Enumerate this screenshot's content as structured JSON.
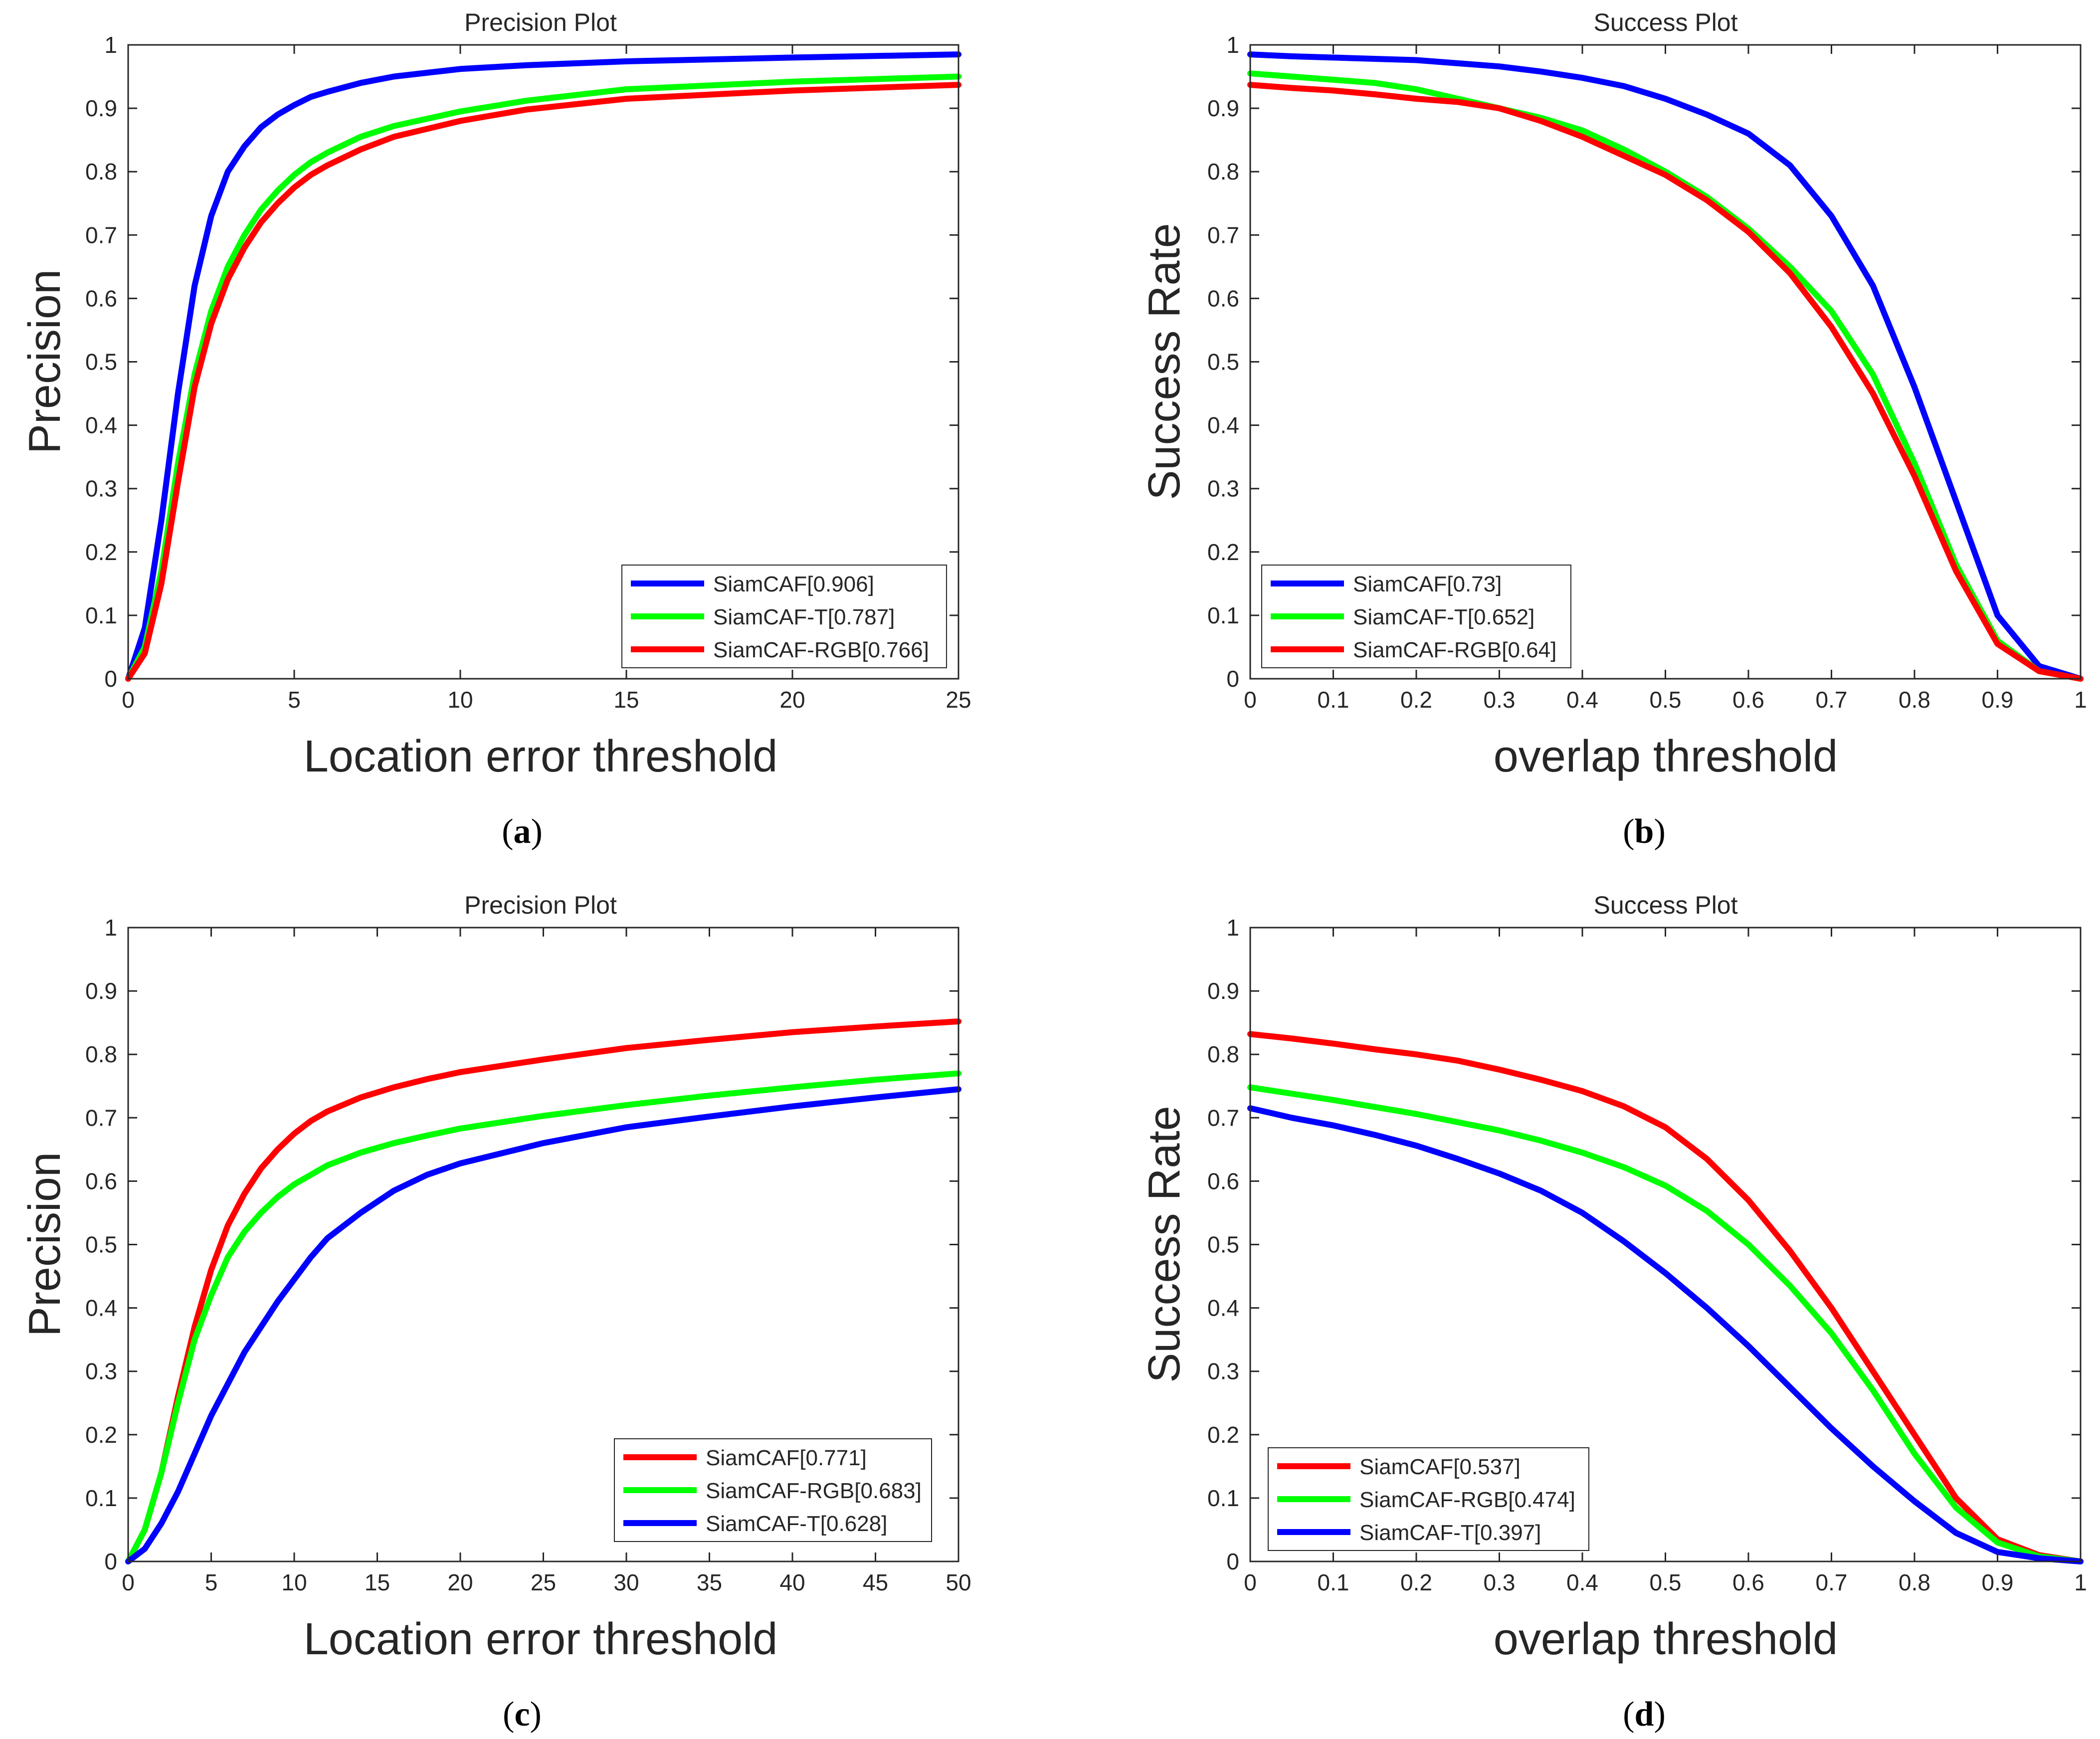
{
  "chart_data": [
    {
      "type": "line",
      "title": "Precision Plot",
      "xlabel": "Location error threshold",
      "ylabel": "Precision",
      "caption_label": "a",
      "xlim": [
        0,
        25
      ],
      "ylim": [
        0,
        1
      ],
      "xticks": [
        "0",
        "5",
        "10",
        "15",
        "20",
        "25"
      ],
      "yticks": [
        "0",
        "0.1",
        "0.2",
        "0.3",
        "0.4",
        "0.5",
        "0.6",
        "0.7",
        "0.8",
        "0.9",
        "1"
      ],
      "legend_position": "bottom-right",
      "series": [
        {
          "name": "SiamCAF[0.906]",
          "color": "#0000ff",
          "x": [
            0,
            0.5,
            1,
            1.5,
            2,
            2.5,
            3,
            3.5,
            4,
            4.5,
            5,
            5.5,
            6,
            7,
            8,
            10,
            12,
            15,
            20,
            25
          ],
          "y": [
            0,
            0.08,
            0.25,
            0.45,
            0.62,
            0.73,
            0.8,
            0.84,
            0.87,
            0.89,
            0.905,
            0.918,
            0.926,
            0.94,
            0.95,
            0.962,
            0.968,
            0.974,
            0.98,
            0.985
          ]
        },
        {
          "name": "SiamCAF-T[0.787]",
          "color": "#00ff00",
          "x": [
            0,
            0.5,
            1,
            1.5,
            2,
            2.5,
            3,
            3.5,
            4,
            4.5,
            5,
            5.5,
            6,
            7,
            8,
            10,
            12,
            15,
            20,
            25
          ],
          "y": [
            0,
            0.05,
            0.17,
            0.34,
            0.48,
            0.58,
            0.65,
            0.7,
            0.74,
            0.77,
            0.795,
            0.815,
            0.83,
            0.855,
            0.872,
            0.895,
            0.912,
            0.93,
            0.942,
            0.95
          ]
        },
        {
          "name": "SiamCAF-RGB[0.766]",
          "color": "#ff0000",
          "x": [
            0,
            0.5,
            1,
            1.5,
            2,
            2.5,
            3,
            3.5,
            4,
            4.5,
            5,
            5.5,
            6,
            7,
            8,
            10,
            12,
            15,
            20,
            25
          ],
          "y": [
            0,
            0.04,
            0.15,
            0.31,
            0.46,
            0.56,
            0.63,
            0.68,
            0.72,
            0.75,
            0.775,
            0.795,
            0.81,
            0.835,
            0.855,
            0.88,
            0.898,
            0.915,
            0.928,
            0.937
          ]
        }
      ]
    },
    {
      "type": "line",
      "title": "Success Plot",
      "xlabel": "overlap threshold",
      "ylabel": "Success Rate",
      "caption_label": "b",
      "xlim": [
        0,
        1
      ],
      "ylim": [
        0,
        1
      ],
      "xticks": [
        "0",
        "0.1",
        "0.2",
        "0.3",
        "0.4",
        "0.5",
        "0.6",
        "0.7",
        "0.8",
        "0.9",
        "1"
      ],
      "yticks": [
        "0",
        "0.1",
        "0.2",
        "0.3",
        "0.4",
        "0.5",
        "0.6",
        "0.7",
        "0.8",
        "0.9",
        "1"
      ],
      "legend_position": "bottom-left",
      "series": [
        {
          "name": "SiamCAF[0.73]",
          "color": "#0000ff",
          "x": [
            0,
            0.05,
            0.1,
            0.15,
            0.2,
            0.25,
            0.3,
            0.35,
            0.4,
            0.45,
            0.5,
            0.55,
            0.6,
            0.65,
            0.7,
            0.75,
            0.8,
            0.85,
            0.9,
            0.95,
            1
          ],
          "y": [
            0.985,
            0.982,
            0.98,
            0.978,
            0.976,
            0.971,
            0.966,
            0.958,
            0.948,
            0.935,
            0.915,
            0.89,
            0.86,
            0.81,
            0.73,
            0.62,
            0.46,
            0.28,
            0.1,
            0.02,
            0
          ]
        },
        {
          "name": "SiamCAF-T[0.652]",
          "color": "#00ff00",
          "x": [
            0,
            0.05,
            0.1,
            0.15,
            0.2,
            0.25,
            0.3,
            0.35,
            0.4,
            0.45,
            0.5,
            0.55,
            0.6,
            0.65,
            0.7,
            0.75,
            0.8,
            0.85,
            0.9,
            0.95,
            1
          ],
          "y": [
            0.955,
            0.95,
            0.945,
            0.94,
            0.93,
            0.915,
            0.9,
            0.885,
            0.865,
            0.835,
            0.8,
            0.76,
            0.71,
            0.65,
            0.58,
            0.48,
            0.34,
            0.18,
            0.06,
            0.012,
            0
          ]
        },
        {
          "name": "SiamCAF-RGB[0.64]",
          "color": "#ff0000",
          "x": [
            0,
            0.05,
            0.1,
            0.15,
            0.2,
            0.25,
            0.3,
            0.35,
            0.4,
            0.45,
            0.5,
            0.55,
            0.6,
            0.65,
            0.7,
            0.75,
            0.8,
            0.85,
            0.9,
            0.95,
            1
          ],
          "y": [
            0.937,
            0.932,
            0.928,
            0.922,
            0.915,
            0.91,
            0.9,
            0.88,
            0.855,
            0.825,
            0.795,
            0.755,
            0.705,
            0.64,
            0.555,
            0.45,
            0.32,
            0.17,
            0.055,
            0.012,
            0
          ]
        }
      ]
    },
    {
      "type": "line",
      "title": "Precision Plot",
      "xlabel": "Location error threshold",
      "ylabel": "Precision",
      "caption_label": "c",
      "xlim": [
        0,
        50
      ],
      "ylim": [
        0,
        1
      ],
      "xticks": [
        "0",
        "5",
        "10",
        "15",
        "20",
        "25",
        "30",
        "35",
        "40",
        "45",
        "50"
      ],
      "yticks": [
        "0",
        "0.1",
        "0.2",
        "0.3",
        "0.4",
        "0.5",
        "0.6",
        "0.7",
        "0.8",
        "0.9",
        "1"
      ],
      "legend_position": "bottom-right",
      "series": [
        {
          "name": "SiamCAF[0.771]",
          "color": "#ff0000",
          "x": [
            0,
            1,
            2,
            3,
            4,
            5,
            6,
            7,
            8,
            9,
            10,
            11,
            12,
            14,
            16,
            18,
            20,
            25,
            30,
            35,
            40,
            45,
            50
          ],
          "y": [
            0,
            0.05,
            0.14,
            0.26,
            0.37,
            0.46,
            0.53,
            0.58,
            0.62,
            0.65,
            0.675,
            0.695,
            0.71,
            0.732,
            0.748,
            0.761,
            0.772,
            0.792,
            0.81,
            0.823,
            0.835,
            0.844,
            0.852
          ]
        },
        {
          "name": "SiamCAF-RGB[0.683]",
          "color": "#00ff00",
          "x": [
            0,
            1,
            2,
            3,
            4,
            5,
            6,
            7,
            8,
            9,
            10,
            11,
            12,
            14,
            16,
            18,
            20,
            25,
            30,
            35,
            40,
            45,
            50
          ],
          "y": [
            0,
            0.05,
            0.14,
            0.25,
            0.35,
            0.42,
            0.48,
            0.52,
            0.55,
            0.575,
            0.595,
            0.61,
            0.625,
            0.645,
            0.66,
            0.672,
            0.683,
            0.703,
            0.72,
            0.735,
            0.748,
            0.76,
            0.77
          ]
        },
        {
          "name": "SiamCAF-T[0.628]",
          "color": "#0000ff",
          "x": [
            0,
            1,
            2,
            3,
            4,
            5,
            6,
            7,
            8,
            9,
            10,
            11,
            12,
            14,
            16,
            18,
            20,
            25,
            30,
            35,
            40,
            45,
            50
          ],
          "y": [
            0,
            0.02,
            0.06,
            0.11,
            0.17,
            0.23,
            0.28,
            0.33,
            0.37,
            0.41,
            0.445,
            0.48,
            0.51,
            0.55,
            0.585,
            0.61,
            0.628,
            0.66,
            0.685,
            0.702,
            0.718,
            0.732,
            0.745
          ]
        }
      ]
    },
    {
      "type": "line",
      "title": "Success Plot",
      "xlabel": "overlap threshold",
      "ylabel": "Success Rate",
      "caption_label": "d",
      "xlim": [
        0,
        1
      ],
      "ylim": [
        0,
        1
      ],
      "xticks": [
        "0",
        "0.1",
        "0.2",
        "0.3",
        "0.4",
        "0.5",
        "0.6",
        "0.7",
        "0.8",
        "0.9",
        "1"
      ],
      "yticks": [
        "0",
        "0.1",
        "0.2",
        "0.3",
        "0.4",
        "0.5",
        "0.6",
        "0.7",
        "0.8",
        "0.9",
        "1"
      ],
      "legend_position": "bottom-left",
      "series": [
        {
          "name": "SiamCAF[0.537]",
          "color": "#ff0000",
          "x": [
            0,
            0.05,
            0.1,
            0.15,
            0.2,
            0.25,
            0.3,
            0.35,
            0.4,
            0.45,
            0.5,
            0.55,
            0.6,
            0.65,
            0.7,
            0.75,
            0.8,
            0.85,
            0.9,
            0.95,
            1
          ],
          "y": [
            0.832,
            0.825,
            0.817,
            0.808,
            0.8,
            0.79,
            0.776,
            0.76,
            0.742,
            0.718,
            0.685,
            0.635,
            0.57,
            0.49,
            0.4,
            0.3,
            0.2,
            0.1,
            0.035,
            0.01,
            0
          ]
        },
        {
          "name": "SiamCAF-RGB[0.474]",
          "color": "#00ff00",
          "x": [
            0,
            0.05,
            0.1,
            0.15,
            0.2,
            0.25,
            0.3,
            0.35,
            0.4,
            0.45,
            0.5,
            0.55,
            0.6,
            0.65,
            0.7,
            0.75,
            0.8,
            0.85,
            0.9,
            0.95,
            1
          ],
          "y": [
            0.748,
            0.738,
            0.728,
            0.717,
            0.706,
            0.693,
            0.68,
            0.664,
            0.645,
            0.622,
            0.593,
            0.553,
            0.5,
            0.435,
            0.36,
            0.27,
            0.17,
            0.085,
            0.03,
            0.008,
            0
          ]
        },
        {
          "name": "SiamCAF-T[0.397]",
          "color": "#0000ff",
          "x": [
            0,
            0.05,
            0.1,
            0.15,
            0.2,
            0.25,
            0.3,
            0.35,
            0.4,
            0.45,
            0.5,
            0.55,
            0.6,
            0.65,
            0.7,
            0.75,
            0.8,
            0.85,
            0.9,
            0.95,
            1
          ],
          "y": [
            0.715,
            0.7,
            0.688,
            0.673,
            0.656,
            0.635,
            0.612,
            0.585,
            0.55,
            0.505,
            0.455,
            0.4,
            0.34,
            0.275,
            0.21,
            0.15,
            0.095,
            0.045,
            0.015,
            0.005,
            0
          ]
        }
      ]
    }
  ]
}
